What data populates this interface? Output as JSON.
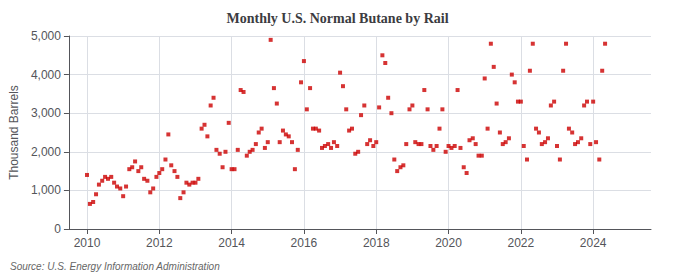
{
  "chart_data": {
    "type": "scatter",
    "title": "Monthly U.S. Normal Butane by Rail",
    "ylabel": "Thousand Barrels",
    "annotations": [
      "Source: U.S. Energy Information Administration"
    ],
    "color": "#cc0000",
    "marker": "square",
    "grid": true,
    "xlim": [
      2009.5,
      2025.6
    ],
    "xticks": [
      2010,
      2012,
      2014,
      2016,
      2018,
      2020,
      2022,
      2024
    ],
    "ylim": [
      0,
      5000
    ],
    "yticks": [
      0,
      {
        "value": 1000,
        "label": "1,000"
      },
      {
        "value": 2000,
        "label": "2,000"
      },
      {
        "value": 3000,
        "label": "3,000"
      },
      {
        "value": 4000,
        "label": "4,000"
      },
      {
        "value": 5000,
        "label": "5,000"
      }
    ],
    "x": [
      2010.0,
      2010.08,
      2010.17,
      2010.25,
      2010.33,
      2010.42,
      2010.5,
      2010.58,
      2010.67,
      2010.75,
      2010.83,
      2010.92,
      2011.0,
      2011.08,
      2011.17,
      2011.25,
      2011.33,
      2011.42,
      2011.5,
      2011.58,
      2011.67,
      2011.75,
      2011.83,
      2011.92,
      2012.0,
      2012.08,
      2012.17,
      2012.25,
      2012.33,
      2012.42,
      2012.5,
      2012.58,
      2012.67,
      2012.75,
      2012.83,
      2012.92,
      2013.0,
      2013.08,
      2013.17,
      2013.25,
      2013.33,
      2013.42,
      2013.5,
      2013.58,
      2013.67,
      2013.75,
      2013.83,
      2013.92,
      2014.0,
      2014.08,
      2014.17,
      2014.25,
      2014.33,
      2014.42,
      2014.5,
      2014.58,
      2014.67,
      2014.75,
      2014.83,
      2014.92,
      2015.0,
      2015.08,
      2015.17,
      2015.25,
      2015.33,
      2015.42,
      2015.5,
      2015.58,
      2015.67,
      2015.75,
      2015.83,
      2015.92,
      2016.0,
      2016.08,
      2016.17,
      2016.25,
      2016.33,
      2016.42,
      2016.5,
      2016.58,
      2016.67,
      2016.75,
      2016.83,
      2016.92,
      2017.0,
      2017.08,
      2017.17,
      2017.25,
      2017.33,
      2017.42,
      2017.5,
      2017.58,
      2017.67,
      2017.75,
      2017.83,
      2017.92,
      2018.0,
      2018.08,
      2018.17,
      2018.25,
      2018.33,
      2018.42,
      2018.5,
      2018.58,
      2018.67,
      2018.75,
      2018.83,
      2018.92,
      2019.0,
      2019.08,
      2019.17,
      2019.25,
      2019.33,
      2019.42,
      2019.5,
      2019.58,
      2019.67,
      2019.75,
      2019.83,
      2019.92,
      2020.0,
      2020.08,
      2020.17,
      2020.25,
      2020.33,
      2020.42,
      2020.5,
      2020.58,
      2020.67,
      2020.75,
      2020.83,
      2020.92,
      2021.0,
      2021.08,
      2021.17,
      2021.25,
      2021.33,
      2021.42,
      2021.5,
      2021.58,
      2021.67,
      2021.75,
      2021.83,
      2021.92,
      2022.0,
      2022.08,
      2022.17,
      2022.25,
      2022.33,
      2022.42,
      2022.5,
      2022.58,
      2022.67,
      2022.75,
      2022.83,
      2022.92,
      2023.0,
      2023.08,
      2023.17,
      2023.25,
      2023.33,
      2023.42,
      2023.5,
      2023.58,
      2023.67,
      2023.75,
      2023.83,
      2023.92,
      2024.0,
      2024.08,
      2024.17,
      2024.25,
      2024.33
    ],
    "values": [
      1400,
      650,
      700,
      900,
      1150,
      1250,
      1350,
      1300,
      1350,
      1200,
      1100,
      1050,
      850,
      1100,
      1550,
      1600,
      1750,
      1500,
      1600,
      1300,
      1250,
      950,
      1050,
      1350,
      1450,
      1550,
      1800,
      2450,
      1650,
      1500,
      1350,
      800,
      950,
      1200,
      1150,
      1200,
      1200,
      1300,
      2600,
      2700,
      2400,
      3200,
      3400,
      2050,
      1950,
      1600,
      2000,
      2750,
      1550,
      1550,
      2050,
      3600,
      3550,
      1900,
      2000,
      2050,
      2200,
      2500,
      2600,
      2100,
      2250,
      4900,
      3650,
      3250,
      2250,
      2550,
      2450,
      2400,
      2250,
      1550,
      2050,
      3800,
      4350,
      3100,
      3650,
      2600,
      2600,
      2550,
      2100,
      2150,
      2200,
      2100,
      2250,
      2150,
      4050,
      3700,
      3100,
      2550,
      2600,
      1950,
      2000,
      2950,
      3200,
      2200,
      2300,
      2150,
      2250,
      3150,
      4500,
      4300,
      3400,
      3000,
      1800,
      1500,
      1600,
      1650,
      2200,
      3100,
      3200,
      2250,
      2200,
      2200,
      3600,
      3100,
      2150,
      2050,
      2150,
      2600,
      3100,
      2000,
      2150,
      2100,
      2150,
      3600,
      2100,
      1600,
      1450,
      2300,
      2350,
      2200,
      1900,
      1900,
      3900,
      2600,
      4800,
      4200,
      3250,
      2500,
      2200,
      2250,
      2350,
      4000,
      3800,
      3300,
      3300,
      2150,
      1800,
      4100,
      4800,
      2600,
      2500,
      2200,
      2250,
      2350,
      3200,
      3300,
      2150,
      1800,
      4100,
      4800,
      2600,
      2500,
      2200,
      2250,
      2350,
      3200,
      3300,
      2200,
      3300,
      2250,
      1800,
      4100,
      4800
    ]
  }
}
